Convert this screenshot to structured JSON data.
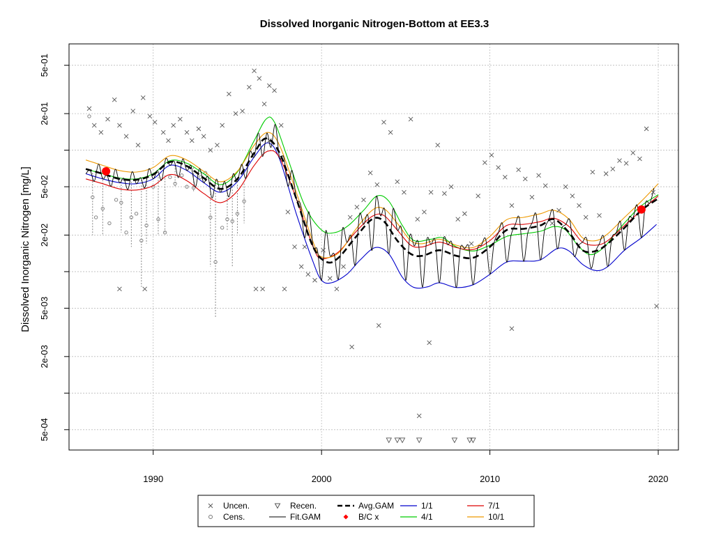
{
  "chart_data": {
    "type": "scatter",
    "title": "Dissolved Inorganic Nitrogen-Bottom at EE3.3",
    "ylabel": "Dissolved Inorganic Nitrogen [mg/L]",
    "xlabel": "",
    "y_scale": "log",
    "xlim": [
      1985.0,
      2021.2
    ],
    "ylim": [
      0.00034,
      0.75
    ],
    "grid": true,
    "legend_position": "bottom",
    "x_ticks": [
      1990,
      2000,
      2010,
      2020
    ],
    "x_tick_labels": [
      "1990",
      "2000",
      "2010",
      "2020"
    ],
    "y_ticks": [
      0.0005,
      0.001,
      0.002,
      0.005,
      0.01,
      0.02,
      0.05,
      0.1,
      0.2,
      0.5
    ],
    "y_tick_labels": [
      "5e-04",
      "",
      "2e-03",
      "5e-03",
      "",
      "2e-02",
      "5e-02",
      "",
      "2e-01",
      "5e-01"
    ],
    "colors": {
      "uncensored": "#555555",
      "censored": "#777777",
      "recensored": "#555555",
      "avg_gam": "#000000",
      "fit_gam": "#000000",
      "bc": "#ff0000",
      "jan1": "#0000cc",
      "apr1": "#00cc00",
      "jul1": "#dd0000",
      "oct1": "#ee9900",
      "grid": "#bbbbbb"
    },
    "legend": [
      {
        "key": "uncen",
        "label": "Uncen.",
        "symbol": "x"
      },
      {
        "key": "cens",
        "label": "Cens.",
        "symbol": "circle"
      },
      {
        "key": "recen",
        "label": "Recen.",
        "symbol": "triangle-down"
      },
      {
        "key": "fit",
        "label": "Fit.GAM",
        "symbol": "line"
      },
      {
        "key": "avg",
        "label": "Avg.GAM",
        "symbol": "dashed"
      },
      {
        "key": "bc",
        "label": "B/C x",
        "symbol": "red-dot"
      },
      {
        "key": "jan",
        "label": "1/1",
        "symbol": "line-blue"
      },
      {
        "key": "apr",
        "label": "4/1",
        "symbol": "line-green"
      },
      {
        "key": "jul",
        "label": "7/1",
        "symbol": "line-red"
      },
      {
        "key": "oct",
        "label": "10/1",
        "symbol": "line-orange"
      }
    ],
    "avg_gam": {
      "name": "Avg.GAM",
      "x": [
        1986.0,
        1987.0,
        1988.0,
        1989.0,
        1990.0,
        1991.0,
        1992.0,
        1993.0,
        1994.0,
        1995.0,
        1996.0,
        1996.7,
        1997.5,
        1998.5,
        1999.5,
        2000.3,
        2001.0,
        2002.0,
        2003.0,
        2003.7,
        2004.5,
        2005.3,
        2006.0,
        2007.0,
        2008.0,
        2009.0,
        2010.0,
        2011.0,
        2012.0,
        2013.0,
        2013.8,
        2014.7,
        2015.5,
        2016.3,
        2017.0,
        2018.0,
        2019.0,
        2020.0
      ],
      "y": [
        0.07,
        0.064,
        0.058,
        0.057,
        0.063,
        0.08,
        0.074,
        0.059,
        0.048,
        0.058,
        0.095,
        0.125,
        0.095,
        0.04,
        0.016,
        0.012,
        0.013,
        0.019,
        0.027,
        0.026,
        0.018,
        0.014,
        0.0135,
        0.015,
        0.0135,
        0.013,
        0.016,
        0.022,
        0.0225,
        0.024,
        0.027,
        0.021,
        0.015,
        0.0148,
        0.017,
        0.023,
        0.032,
        0.04
      ]
    },
    "seasonal_series": [
      {
        "name": "1/1",
        "x": [
          1986.0,
          1987.0,
          1988.0,
          1989.0,
          1990.0,
          1991.0,
          1992.0,
          1993.0,
          1994.0,
          1995.0,
          1996.0,
          1996.8,
          1997.5,
          1998.5,
          1999.5,
          2000.0,
          2000.6,
          2001.5,
          2002.3,
          2003.2,
          2004.0,
          2004.8,
          2005.5,
          2006.3,
          2007.0,
          2008.0,
          2009.0,
          2010.0,
          2011.0,
          2012.0,
          2013.0,
          2014.0,
          2014.7,
          2015.5,
          2016.3,
          2017.0,
          2018.0,
          2019.0,
          2019.9
        ],
        "y": [
          0.064,
          0.058,
          0.054,
          0.053,
          0.058,
          0.075,
          0.068,
          0.054,
          0.045,
          0.055,
          0.088,
          0.115,
          0.085,
          0.03,
          0.012,
          0.0085,
          0.0081,
          0.0095,
          0.0125,
          0.0158,
          0.014,
          0.009,
          0.0074,
          0.0075,
          0.0081,
          0.0074,
          0.0078,
          0.0095,
          0.012,
          0.0122,
          0.0125,
          0.0155,
          0.0148,
          0.0115,
          0.0102,
          0.011,
          0.015,
          0.019,
          0.0245
        ]
      },
      {
        "name": "4/1",
        "x": [
          1986.0,
          1987.0,
          1988.0,
          1989.0,
          1990.0,
          1991.0,
          1992.0,
          1993.0,
          1994.0,
          1995.0,
          1996.0,
          1996.7,
          1997.2,
          1998.0,
          1999.0,
          2000.0,
          2000.8,
          2001.6,
          2002.5,
          2003.3,
          2004.0,
          2004.8,
          2005.5,
          2006.5,
          2007.2,
          2008.0,
          2009.0,
          2010.0,
          2011.0,
          2012.0,
          2013.0,
          2013.8,
          2014.5,
          2015.3,
          2016.0,
          2016.8,
          2017.5,
          2018.3,
          2019.0,
          2020.0
        ],
        "y": [
          0.07,
          0.064,
          0.059,
          0.058,
          0.064,
          0.082,
          0.078,
          0.064,
          0.052,
          0.066,
          0.12,
          0.18,
          0.17,
          0.085,
          0.035,
          0.022,
          0.021,
          0.024,
          0.032,
          0.042,
          0.038,
          0.024,
          0.018,
          0.0185,
          0.019,
          0.016,
          0.0148,
          0.0165,
          0.0195,
          0.0205,
          0.0215,
          0.0235,
          0.022,
          0.016,
          0.0138,
          0.016,
          0.021,
          0.028,
          0.035,
          0.043
        ]
      },
      {
        "name": "7/1",
        "x": [
          1986.0,
          1987.0,
          1988.0,
          1989.0,
          1990.0,
          1991.0,
          1992.0,
          1993.0,
          1994.0,
          1995.0,
          1996.0,
          1996.8,
          1997.5,
          1998.5,
          1999.5,
          2000.0,
          2001.0,
          2002.0,
          2003.0,
          2003.7,
          2004.5,
          2005.3,
          2006.0,
          2007.0,
          2008.0,
          2009.0,
          2010.0,
          2011.0,
          2012.0,
          2013.0,
          2013.8,
          2014.7,
          2015.5,
          2016.3,
          2017.0,
          2018.0,
          2019.0,
          2020.0
        ],
        "y": [
          0.058,
          0.053,
          0.048,
          0.047,
          0.051,
          0.063,
          0.056,
          0.044,
          0.037,
          0.046,
          0.075,
          0.098,
          0.087,
          0.04,
          0.016,
          0.0128,
          0.0145,
          0.021,
          0.0285,
          0.029,
          0.022,
          0.0165,
          0.016,
          0.0175,
          0.0158,
          0.0152,
          0.018,
          0.024,
          0.0245,
          0.0258,
          0.0275,
          0.0235,
          0.0175,
          0.0165,
          0.018,
          0.024,
          0.032,
          0.042
        ]
      },
      {
        "name": "10/1",
        "x": [
          1986.0,
          1987.0,
          1988.0,
          1989.0,
          1990.0,
          1991.0,
          1992.0,
          1993.0,
          1994.0,
          1995.0,
          1996.0,
          1996.8,
          1997.5,
          1998.5,
          1999.5,
          2000.0,
          2001.0,
          2002.0,
          2003.0,
          2003.7,
          2004.5,
          2005.3,
          2006.0,
          2007.0,
          2008.0,
          2009.0,
          2010.0,
          2011.0,
          2012.0,
          2013.0,
          2013.8,
          2014.7,
          2015.5,
          2016.3,
          2017.0,
          2018.0,
          2019.0,
          2020.0
        ],
        "y": [
          0.083,
          0.075,
          0.068,
          0.066,
          0.072,
          0.09,
          0.083,
          0.067,
          0.055,
          0.067,
          0.11,
          0.14,
          0.11,
          0.045,
          0.0175,
          0.0132,
          0.0142,
          0.022,
          0.032,
          0.033,
          0.025,
          0.018,
          0.017,
          0.0185,
          0.0165,
          0.0158,
          0.0195,
          0.0268,
          0.028,
          0.03,
          0.032,
          0.027,
          0.019,
          0.018,
          0.0205,
          0.028,
          0.038,
          0.053
        ]
      }
    ],
    "bc_points": [
      {
        "x": 1987.2,
        "y": 0.067
      },
      {
        "x": 2019.0,
        "y": 0.0325
      }
    ],
    "recensored_points": {
      "x": [
        2004.0,
        2004.5,
        2004.8,
        2005.8,
        2007.9,
        2008.8,
        2009.0
      ],
      "y": [
        0.00041,
        0.00041,
        0.00041,
        0.00041,
        0.00041,
        0.00041,
        0.00041
      ]
    },
    "uncensored_points": {
      "x": [
        1986.2,
        1986.5,
        1986.9,
        1987.3,
        1987.7,
        1988.0,
        1988.4,
        1988.8,
        1989.1,
        1989.4,
        1989.8,
        1990.1,
        1990.6,
        1990.9,
        1991.2,
        1991.6,
        1992.0,
        1992.3,
        1992.7,
        1993.0,
        1993.4,
        1993.8,
        1994.1,
        1994.5,
        1994.9,
        1995.3,
        1995.7,
        1996.0,
        1996.3,
        1996.6,
        1996.9,
        1997.2,
        1997.6,
        1998.0,
        1998.4,
        1998.8,
        1999.2,
        1999.6,
        2000.1,
        2000.5,
        2000.9,
        2001.3,
        2001.7,
        2002.1,
        2002.5,
        2002.9,
        2003.3,
        2003.7,
        2004.1,
        2004.5,
        2004.9,
        2005.3,
        2005.7,
        2006.1,
        2006.5,
        2006.9,
        2007.3,
        2007.7,
        2008.1,
        2008.5,
        2008.9,
        2009.3,
        2009.7,
        2010.1,
        2010.5,
        2010.9,
        2011.3,
        2011.7,
        2012.1,
        2012.5,
        2012.9,
        2013.3,
        2013.7,
        2014.1,
        2014.5,
        2014.9,
        2015.3,
        2015.7,
        2016.1,
        2016.5,
        2016.9,
        2017.3,
        2017.7,
        2018.1,
        2018.5,
        2018.9,
        2019.3,
        2019.7,
        1996.1,
        1996.5,
        1997.8,
        1989.5,
        1988.0,
        2005.8,
        2006.4,
        2003.4,
        2011.3,
        2001.8,
        2019.9,
        1999.0,
        1996.9
      ],
      "y": [
        0.22,
        0.16,
        0.14,
        0.18,
        0.26,
        0.16,
        0.13,
        0.21,
        0.11,
        0.27,
        0.19,
        0.17,
        0.14,
        0.12,
        0.16,
        0.18,
        0.14,
        0.12,
        0.15,
        0.13,
        0.1,
        0.11,
        0.16,
        0.29,
        0.2,
        0.21,
        0.33,
        0.45,
        0.39,
        0.24,
        0.34,
        0.31,
        0.16,
        0.031,
        0.016,
        0.011,
        0.0095,
        0.0085,
        0.015,
        0.0088,
        0.0072,
        0.011,
        0.028,
        0.034,
        0.039,
        0.065,
        0.052,
        0.17,
        0.14,
        0.055,
        0.045,
        0.18,
        0.027,
        0.031,
        0.045,
        0.11,
        0.044,
        0.05,
        0.027,
        0.03,
        0.017,
        0.042,
        0.079,
        0.091,
        0.072,
        0.06,
        0.035,
        0.069,
        0.058,
        0.041,
        0.062,
        0.051,
        0.025,
        0.032,
        0.05,
        0.042,
        0.035,
        0.028,
        0.066,
        0.029,
        0.064,
        0.07,
        0.082,
        0.078,
        0.095,
        0.085,
        0.15,
        0.045,
        0.0072,
        0.0072,
        0.0072,
        0.0072,
        0.0072,
        0.00065,
        0.0026,
        0.0036,
        0.0034,
        0.0024,
        0.0052,
        0.016,
        0.12
      ]
    },
    "censored_points": {
      "x": [
        1986.2,
        1986.4,
        1986.6,
        1987.0,
        1987.4,
        1987.8,
        1988.1,
        1988.4,
        1988.7,
        1989.0,
        1989.3,
        1989.6,
        1990.0,
        1990.3,
        1990.7,
        1991.0,
        1991.3,
        1991.7,
        1992.0,
        1992.4,
        1992.8,
        1993.1,
        1993.4,
        1993.7,
        1994.1,
        1994.4,
        1994.7,
        1995.0,
        1995.4
      ],
      "y": [
        0.19,
        0.041,
        0.028,
        0.033,
        0.025,
        0.039,
        0.037,
        0.021,
        0.028,
        0.03,
        0.018,
        0.024,
        0.05,
        0.027,
        0.021,
        0.06,
        0.053,
        0.062,
        0.05,
        0.049,
        0.06,
        0.065,
        0.028,
        0.012,
        0.023,
        0.027,
        0.026,
        0.03,
        0.038
      ]
    },
    "censored_drop_lines": [
      {
        "x": 1986.4,
        "y_top": 0.065,
        "y_bottom": 0.02
      },
      {
        "x": 1987.0,
        "y_top": 0.06,
        "y_bottom": 0.02
      },
      {
        "x": 1988.1,
        "y_top": 0.058,
        "y_bottom": 0.021
      },
      {
        "x": 1988.7,
        "y_top": 0.055,
        "y_bottom": 0.016
      },
      {
        "x": 1989.3,
        "y_top": 0.057,
        "y_bottom": 0.0075
      },
      {
        "x": 1989.6,
        "y_top": 0.055,
        "y_bottom": 0.017
      },
      {
        "x": 1990.3,
        "y_top": 0.06,
        "y_bottom": 0.02
      },
      {
        "x": 1990.7,
        "y_top": 0.062,
        "y_bottom": 0.021
      },
      {
        "x": 1991.3,
        "y_top": 0.075,
        "y_bottom": 0.05
      },
      {
        "x": 1992.4,
        "y_top": 0.072,
        "y_bottom": 0.045
      },
      {
        "x": 1993.4,
        "y_top": 0.06,
        "y_bottom": 0.011
      },
      {
        "x": 1993.7,
        "y_top": 0.055,
        "y_bottom": 0.0042
      },
      {
        "x": 1994.4,
        "y_top": 0.05,
        "y_bottom": 0.022
      },
      {
        "x": 1994.7,
        "y_top": 0.05,
        "y_bottom": 0.011
      },
      {
        "x": 1995.0,
        "y_top": 0.052,
        "y_bottom": 0.02
      },
      {
        "x": 1995.4,
        "y_top": 0.056,
        "y_bottom": 0.025
      }
    ]
  }
}
